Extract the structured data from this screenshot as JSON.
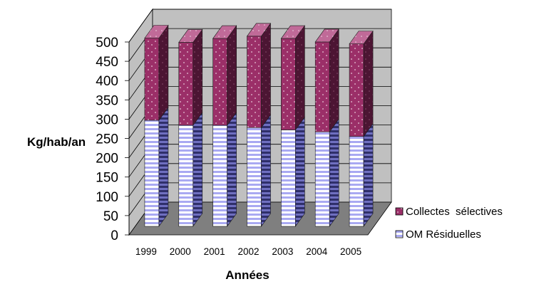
{
  "chart_data": {
    "type": "bar",
    "stacked": true,
    "three_d": true,
    "categories": [
      "1999",
      "2000",
      "2001",
      "2002",
      "2003",
      "2004",
      "2005"
    ],
    "series": [
      {
        "name": "OM Résiduelles",
        "values": [
          275,
          262,
          262,
          256,
          250,
          245,
          233
        ],
        "color": "#c8c8f5",
        "pattern": "horizontal-stripes"
      },
      {
        "name": "Collectes  sélectives",
        "values": [
          213,
          215,
          225,
          237,
          237,
          233,
          240
        ],
        "color": "#9a2e66",
        "pattern": "dots"
      }
    ],
    "ylabel": "Kg/hab/an",
    "xlabel": "Années",
    "ylim": [
      0,
      500
    ],
    "yticks": [
      0,
      50,
      100,
      150,
      200,
      250,
      300,
      350,
      400,
      450,
      500
    ],
    "grid": true,
    "legend": "right"
  }
}
